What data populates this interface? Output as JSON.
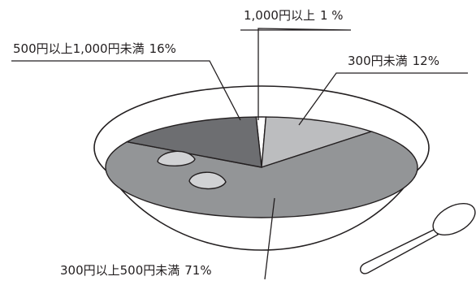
{
  "chart_data": {
    "type": "pie",
    "title": "",
    "slices": [
      {
        "label": "1,000円以上",
        "value": 1,
        "value_label": "1 %",
        "color": "#ffffff"
      },
      {
        "label": "300円未満",
        "value": 12,
        "value_label": "12%",
        "color": "#bcbdbf"
      },
      {
        "label": "300円以上500円未満",
        "value": 71,
        "value_label": "71%",
        "color": "#939597"
      },
      {
        "label": "500円以上1,000円未満",
        "value": 16,
        "value_label": "16%",
        "color": "#6d6e71"
      }
    ],
    "legend": "none"
  },
  "colors": {
    "stroke": "#231f20",
    "bowl": "#ffffff",
    "dumpling": "#d1d2d4"
  },
  "icons": {
    "spoon": "spoon-icon",
    "dumpling": "dumpling-icon"
  }
}
